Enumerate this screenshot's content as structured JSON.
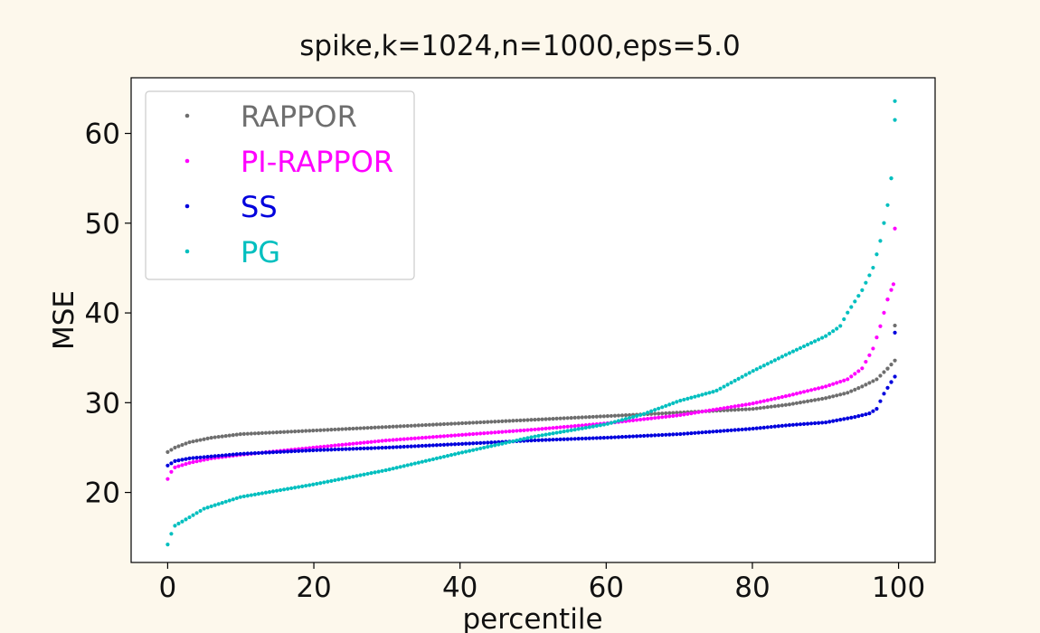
{
  "chart_data": {
    "type": "scatter",
    "title": "spike,k=1024,n=1000,eps=5.0",
    "xlabel": "percentile",
    "ylabel": "MSE",
    "xlim": [
      -5,
      105
    ],
    "ylim": [
      12.2,
      66.2
    ],
    "xticks": [
      0,
      20,
      40,
      60,
      80,
      100
    ],
    "yticks": [
      20,
      30,
      40,
      50,
      60
    ],
    "grid": false,
    "legend_position": "top-left",
    "point_count_per_series": 200,
    "series": [
      {
        "name": "RAPPOR",
        "color": "#6e6e6e",
        "curve": [
          [
            0,
            24.5
          ],
          [
            1,
            25.0
          ],
          [
            3,
            25.6
          ],
          [
            6,
            26.1
          ],
          [
            10,
            26.5
          ],
          [
            20,
            26.9
          ],
          [
            30,
            27.3
          ],
          [
            40,
            27.7
          ],
          [
            50,
            28.1
          ],
          [
            60,
            28.5
          ],
          [
            70,
            28.9
          ],
          [
            80,
            29.3
          ],
          [
            85,
            29.8
          ],
          [
            90,
            30.5
          ],
          [
            93,
            31.1
          ],
          [
            95,
            31.8
          ],
          [
            97,
            32.6
          ],
          [
            98.5,
            33.8
          ],
          [
            99.5,
            34.7
          ],
          [
            99.5,
            38.6
          ]
        ]
      },
      {
        "name": "PI-RAPPOR",
        "color": "#ff00ff",
        "curve": [
          [
            0,
            21.5
          ],
          [
            0.5,
            22.3
          ],
          [
            1,
            22.8
          ],
          [
            3,
            23.3
          ],
          [
            6,
            23.8
          ],
          [
            10,
            24.2
          ],
          [
            20,
            25.0
          ],
          [
            30,
            25.8
          ],
          [
            40,
            26.4
          ],
          [
            50,
            27.0
          ],
          [
            60,
            27.7
          ],
          [
            70,
            28.6
          ],
          [
            80,
            29.9
          ],
          [
            85,
            30.8
          ],
          [
            90,
            31.8
          ],
          [
            93,
            32.6
          ],
          [
            95,
            33.8
          ],
          [
            96.5,
            36.0
          ],
          [
            97.5,
            38.5
          ],
          [
            98.5,
            41.5
          ],
          [
            99.3,
            43.2
          ],
          [
            99.5,
            49.4
          ]
        ]
      },
      {
        "name": "SS",
        "color": "#0000dd",
        "curve": [
          [
            0,
            23.0
          ],
          [
            1,
            23.5
          ],
          [
            3,
            23.8
          ],
          [
            10,
            24.3
          ],
          [
            20,
            24.7
          ],
          [
            30,
            25.0
          ],
          [
            40,
            25.4
          ],
          [
            50,
            25.8
          ],
          [
            60,
            26.1
          ],
          [
            70,
            26.5
          ],
          [
            80,
            27.1
          ],
          [
            85,
            27.5
          ],
          [
            90,
            27.8
          ],
          [
            94,
            28.4
          ],
          [
            96,
            28.8
          ],
          [
            97,
            29.3
          ],
          [
            98,
            31.0
          ],
          [
            99,
            32.3
          ],
          [
            99.5,
            32.9
          ],
          [
            99.5,
            37.8
          ]
        ]
      },
      {
        "name": "PG",
        "color": "#00bfbf",
        "curve": [
          [
            0,
            14.2
          ],
          [
            0.5,
            15.4
          ],
          [
            1,
            16.3
          ],
          [
            2.5,
            17.0
          ],
          [
            5,
            18.2
          ],
          [
            10,
            19.5
          ],
          [
            20,
            20.9
          ],
          [
            30,
            22.5
          ],
          [
            40,
            24.4
          ],
          [
            50,
            26.2
          ],
          [
            60,
            27.6
          ],
          [
            65,
            28.7
          ],
          [
            70,
            30.2
          ],
          [
            75,
            31.3
          ],
          [
            80,
            33.5
          ],
          [
            85,
            35.5
          ],
          [
            90,
            37.4
          ],
          [
            92,
            38.5
          ],
          [
            93,
            40.0
          ],
          [
            95,
            42.5
          ],
          [
            96.5,
            45.0
          ],
          [
            97.5,
            48.0
          ],
          [
            98.5,
            52.0
          ],
          [
            99,
            55.0
          ],
          [
            99.5,
            61.5
          ],
          [
            99.5,
            63.6
          ]
        ]
      }
    ]
  }
}
